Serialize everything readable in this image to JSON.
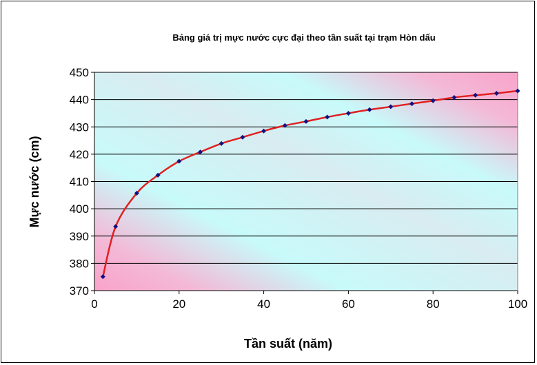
{
  "chart_data": {
    "type": "line",
    "title": "Bảng giá trị mực nước cực đại theo tần suất tại trạm Hòn dấu",
    "xlabel": "Tần suất (năm)",
    "ylabel": "Mực nước (cm)",
    "xlim": [
      0,
      100
    ],
    "ylim": [
      370,
      450
    ],
    "xticks": [
      0,
      20,
      40,
      60,
      80,
      100
    ],
    "yticks": [
      370,
      380,
      390,
      400,
      410,
      420,
      430,
      440,
      450
    ],
    "grid": true,
    "legend": "none",
    "colors": {
      "line": "#e02020",
      "marker": "#101080",
      "grid": "#000000",
      "gradient_pink": "#f9a3c9",
      "gradient_cyan": "#c6fbfb"
    },
    "series": [
      {
        "x": [
          2,
          5,
          10,
          15,
          20,
          25,
          30,
          35,
          40,
          45,
          50,
          55,
          60,
          65,
          70,
          75,
          80,
          85,
          90,
          95,
          100
        ],
        "y": [
          375.1,
          393.5,
          405.7,
          412.3,
          417.4,
          420.8,
          423.9,
          426.2,
          428.5,
          430.5,
          432.0,
          433.6,
          435.0,
          436.3,
          437.4,
          438.5,
          439.6,
          440.8,
          441.6,
          442.3,
          443.2
        ]
      }
    ]
  }
}
